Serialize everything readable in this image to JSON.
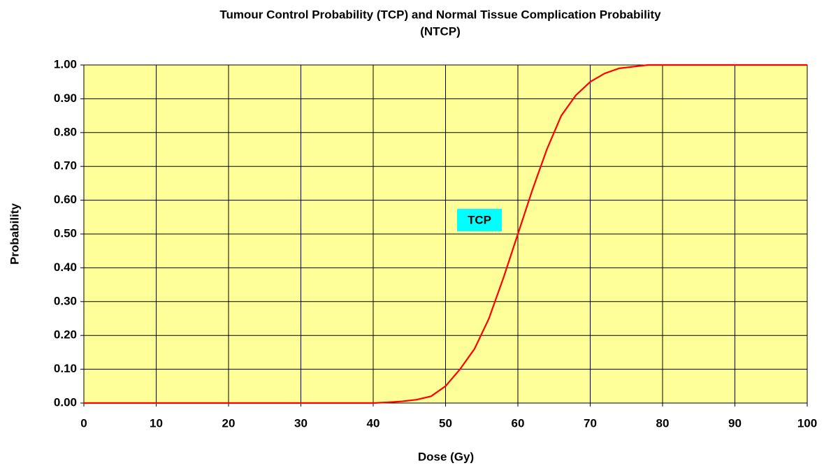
{
  "chart_data": {
    "type": "line",
    "title": [
      "Tumour Control Probability (TCP) and Normal Tissue Complication Probability",
      "(NTCP)"
    ],
    "x_label": "Dose (Gy)",
    "y_label": "Probability",
    "annotation": "TCP",
    "x": [
      0,
      40,
      42,
      44,
      46,
      48,
      50,
      52,
      54,
      56,
      58,
      60,
      62,
      64,
      66,
      68,
      70,
      72,
      74,
      76,
      78,
      80,
      90,
      100
    ],
    "series": [
      {
        "name": "TCP",
        "color": "#ff0000",
        "values": [
          0,
          0,
          0.002,
          0.005,
          0.01,
          0.02,
          0.05,
          0.1,
          0.16,
          0.25,
          0.37,
          0.5,
          0.63,
          0.75,
          0.85,
          0.91,
          0.95,
          0.975,
          0.99,
          0.995,
          1,
          1,
          1,
          1
        ]
      }
    ],
    "xlim": [
      0,
      100
    ],
    "xticks": [
      0,
      10,
      20,
      30,
      40,
      50,
      60,
      70,
      80,
      90,
      100
    ],
    "ylim": [
      0,
      1
    ],
    "yticks": [
      {
        "value": 0,
        "label": "0.00"
      },
      {
        "value": 0.1,
        "label": "0.10"
      },
      {
        "value": 0.2,
        "label": "0.20"
      },
      {
        "value": 0.3,
        "label": "0.30"
      },
      {
        "value": 0.4,
        "label": "0.40"
      },
      {
        "value": 0.5,
        "label": "0.50"
      },
      {
        "value": 0.6,
        "label": "0.60"
      },
      {
        "value": 0.7,
        "label": "0.70"
      },
      {
        "value": 0.8,
        "label": "0.80"
      },
      {
        "value": 0.9,
        "label": "0.90"
      },
      {
        "value": 1,
        "label": "1.00"
      }
    ],
    "grid": true,
    "plot_background": "#ffff99"
  }
}
